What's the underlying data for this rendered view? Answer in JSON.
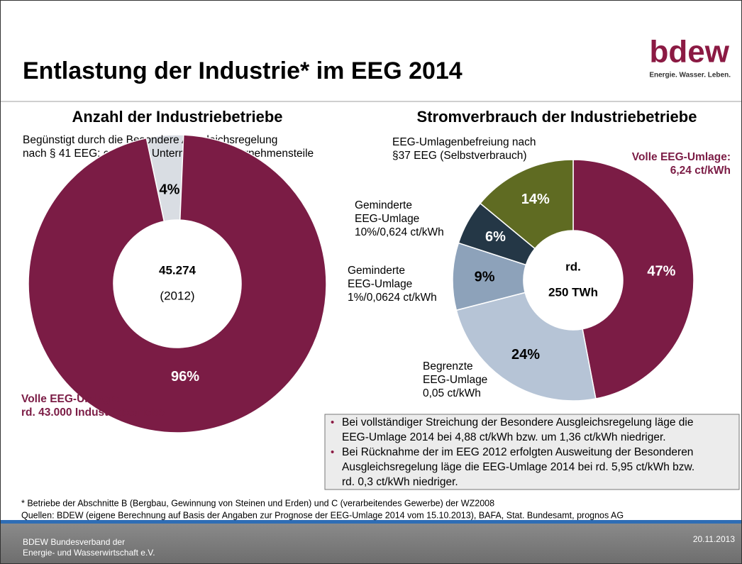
{
  "header": {
    "title": "Entlastung der Industrie* im EEG 2014",
    "logo": "bdew",
    "tagline": "Energie. Wasser. Leben."
  },
  "chart_data": [
    {
      "type": "pie",
      "title": "Anzahl der Industriebetriebe",
      "categories": [
        [
          "Begünstigt durch die Besondere Ausgleichsregelung",
          "nach § 41 EEG: ca. 2.000 Unternehmen/Unternehmensteile"
        ],
        [
          "Volle EEG-Umlage:",
          "rd. 43.000 Industriebetriebe"
        ]
      ],
      "values": [
        4,
        96
      ],
      "value_labels": [
        "4%",
        "96%"
      ],
      "colors": [
        "#d9dde3",
        "#7b1c45"
      ],
      "center_label": [
        "45.274",
        "(2012)"
      ]
    },
    {
      "type": "pie",
      "title": "Stromverbrauch der Industriebetriebe",
      "categories": [
        [
          "Volle EEG-Umlage:",
          "6,24 ct/kWh"
        ],
        [
          "Begrenzte",
          "EEG-Umlage",
          "0,05 ct/kWh"
        ],
        [
          "Geminderte",
          "EEG-Umlage",
          "1%/0,0624 ct/kWh"
        ],
        [
          "Geminderte",
          "EEG-Umlage",
          "10%/0,624 ct/kWh"
        ],
        [
          "EEG-Umlagenbefreiung nach",
          "§37 EEG (Selbstverbrauch)"
        ]
      ],
      "values": [
        47,
        24,
        9,
        6,
        14
      ],
      "value_labels": [
        "47%",
        "24%",
        "9%",
        "6%",
        "14%"
      ],
      "colors": [
        "#7b1c45",
        "#b6c4d6",
        "#8da2ba",
        "#243746",
        "#5f6b22"
      ],
      "center_label": [
        "rd.",
        "250 TWh"
      ]
    }
  ],
  "notes": [
    [
      "Bei vollständiger Streichung der Besondere Ausgleichsregelung läge die",
      "EEG-Umlage 2014 bei 4,88 ct/kWh bzw. um 1,36 ct/kWh niedriger."
    ],
    [
      "Bei Rücknahme der im EEG 2012 erfolgten Ausweitung der Besonderen",
      "Ausgleichsregelung läge die EEG-Umlage 2014 bei rd. 5,95 ct/kWh bzw.",
      "rd. 0,3 ct/kWh niedriger."
    ]
  ],
  "footnotes": [
    "* Betriebe der Abschnitte B (Bergbau, Gewinnung von Steinen und Erden) und C (verarbeitendes Gewerbe) der WZ2008",
    "Quellen: BDEW (eigene Berechnung auf Basis der Angaben zur Prognose der EEG-Umlage 2014 vom 15.10.2013), BAFA, Stat. Bundesamt, prognos AG"
  ],
  "footer": {
    "organization": [
      "BDEW Bundesverband der",
      "Energie- und Wasserwirtschaft e.V."
    ],
    "date": "20.11.2013"
  }
}
